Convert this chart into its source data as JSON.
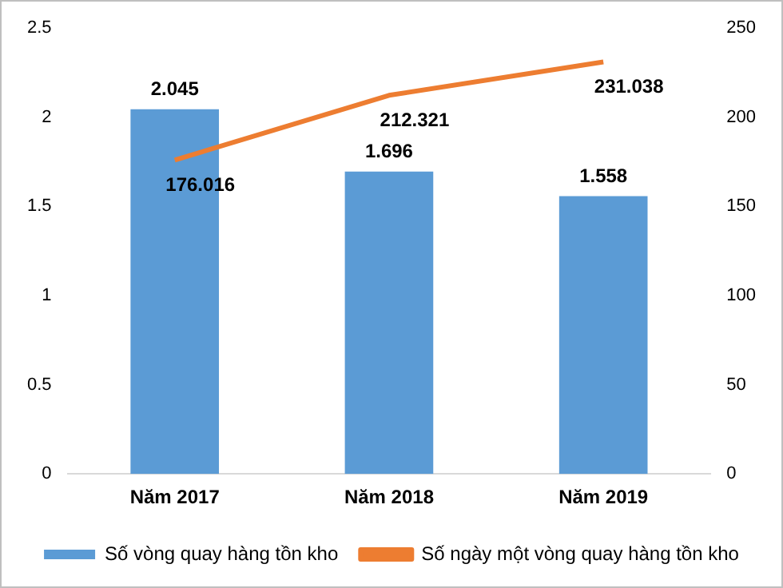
{
  "chart_data": {
    "type": "bar",
    "categories": [
      "Năm 2017",
      "Năm 2018",
      "Năm 2019"
    ],
    "series": [
      {
        "name": "Số vòng quay hàng tồn kho",
        "color": "#5b9bd5",
        "values": [
          2.045,
          1.696,
          1.558
        ]
      },
      {
        "name": "Số ngày một vòng quay hàng tồn kho",
        "type": "line",
        "axis": "y2",
        "color": "#ed7d31",
        "values": [
          176.016,
          212.321,
          231.038
        ]
      }
    ],
    "ylim": [
      0,
      2.5
    ],
    "yticks": [
      0,
      0.5,
      1,
      1.5,
      2,
      2.5
    ],
    "y2lim": [
      0,
      250
    ],
    "y2ticks": [
      0,
      50,
      100,
      150,
      200,
      250
    ],
    "grid": false,
    "legend": "bottom",
    "marker": "none",
    "line_style": "solid",
    "data_labels": true
  }
}
